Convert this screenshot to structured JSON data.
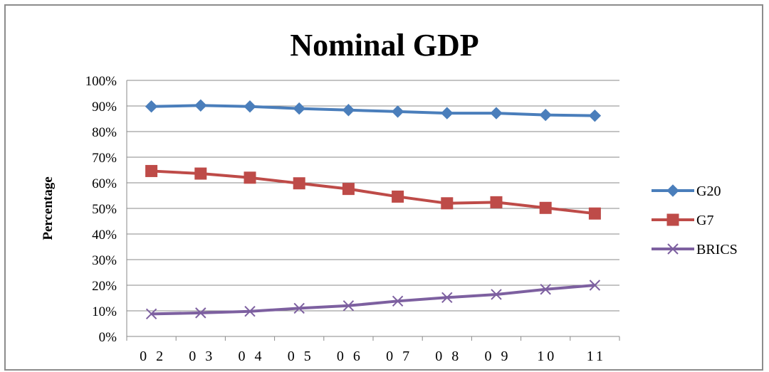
{
  "chart_data": {
    "type": "line",
    "title": "Nominal GDP",
    "ylabel": "Percentage",
    "xlabel": "",
    "categories": [
      "0 2",
      "0 3",
      "0 4",
      "0 5",
      "0 6",
      "0 7",
      "0 8",
      "0 9",
      "10",
      "11"
    ],
    "ylim": [
      0,
      100
    ],
    "yticks": [
      "0%",
      "10%",
      "20%",
      "30%",
      "40%",
      "50%",
      "60%",
      "70%",
      "80%",
      "90%",
      "100%"
    ],
    "grid": true,
    "legend_position": "right",
    "series": [
      {
        "name": "G20",
        "color": "#4a7ebb",
        "marker": "diamond",
        "values": [
          89.8,
          90.2,
          89.8,
          89.0,
          88.4,
          87.8,
          87.2,
          87.2,
          86.5,
          86.2
        ]
      },
      {
        "name": "G7",
        "color": "#be4b48",
        "marker": "square",
        "values": [
          64.6,
          63.6,
          62.0,
          59.8,
          57.6,
          54.6,
          52.0,
          52.4,
          50.2,
          48.0
        ]
      },
      {
        "name": "BRICS",
        "color": "#7d60a0",
        "marker": "x",
        "values": [
          8.8,
          9.2,
          9.8,
          11.0,
          12.0,
          13.8,
          15.2,
          16.4,
          18.4,
          20.0
        ]
      }
    ]
  }
}
